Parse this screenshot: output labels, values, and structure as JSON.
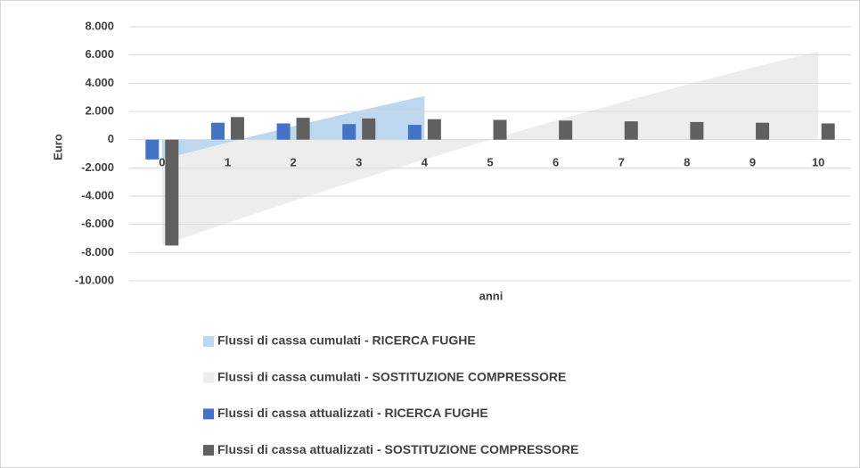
{
  "chart_data": {
    "type": "combo",
    "x_label": "anni",
    "y_label": "Euro",
    "categories": [
      "0",
      "1",
      "2",
      "3",
      "4",
      "5",
      "6",
      "7",
      "8",
      "9",
      "10"
    ],
    "ylim": [
      -10000,
      8000
    ],
    "yticks": [
      {
        "value": -10000,
        "label": "-10.000"
      },
      {
        "value": -8000,
        "label": "-8.000"
      },
      {
        "value": -6000,
        "label": "-6.000"
      },
      {
        "value": -4000,
        "label": "-4.000"
      },
      {
        "value": -2000,
        "label": "-2.000"
      },
      0,
      {
        "value": 2000,
        "label": "2.000"
      },
      {
        "value": 4000,
        "label": "4.000"
      },
      {
        "value": 6000,
        "label": "6.000"
      },
      {
        "value": 8000,
        "label": "8.000"
      }
    ],
    "grid": true,
    "legend": "bottom",
    "series": [
      {
        "name": "Flussi di cassa cumulati - RICERCA FUGHE",
        "type": "area",
        "color": "#bdd7ee",
        "values": [
          -1400,
          -200,
          950,
          2050,
          3100,
          null,
          null,
          null,
          null,
          null,
          null
        ]
      },
      {
        "name": "Flussi di cassa cumulati - SOSTITUZIONE COMPRESSORE",
        "type": "area",
        "color": "#ededed",
        "values": [
          -7500,
          -5900,
          -4350,
          -2850,
          -1400,
          0,
          1350,
          2650,
          3900,
          5100,
          6250
        ]
      },
      {
        "name": "Flussi di cassa attualizzati - RICERCA FUGHE",
        "type": "bar",
        "color": "#4472c4",
        "values": [
          -1400,
          1200,
          1150,
          1100,
          1050,
          null,
          null,
          null,
          null,
          null,
          null
        ]
      },
      {
        "name": "Flussi di cassa attualizzati - SOSTITUZIONE COMPRESSORE",
        "type": "bar",
        "color": "#606060",
        "values": [
          -7500,
          1600,
          1550,
          1500,
          1450,
          1400,
          1350,
          1300,
          1250,
          1200,
          1150
        ]
      }
    ]
  }
}
